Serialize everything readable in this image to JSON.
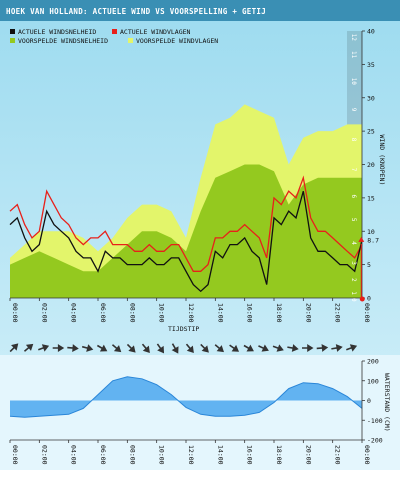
{
  "title": "HOEK VAN HOLLAND: ACTUELE WIND VS VOORSPELLING + GETIJ",
  "colors": {
    "header": "#3a8fb4",
    "sky_top": "#9fdcf0",
    "sky_bottom": "#d6f1fa",
    "actual_speed": "#111111",
    "actual_gust": "#e8201a",
    "forecast_speed": "#94c91f",
    "forecast_gust": "#e3f56b",
    "tide_fill": "#62b3f1",
    "tide_line": "#2a86d8",
    "arrow": "#333333",
    "current_marker": "#e8201a"
  },
  "chart_data": [
    {
      "type": "area",
      "xlabel": "TIJDSTIP",
      "ylabel": "WIND (KNOPEN)",
      "x_unit": "hours",
      "xlim": [
        0,
        24
      ],
      "ylim": [
        0,
        40
      ],
      "yticks": [
        0,
        5,
        10,
        15,
        20,
        25,
        30,
        35,
        40
      ],
      "xticks": [
        "00:00",
        "02:00",
        "04:00",
        "06:00",
        "08:00",
        "10:00",
        "12:00",
        "14:00",
        "16:00",
        "18:00",
        "20:00",
        "22:00",
        "00:00"
      ],
      "bft_scale": [
        "0",
        "1",
        "2",
        "3",
        "4",
        "5",
        "6",
        "7",
        "8",
        "9",
        "10",
        "11",
        "12"
      ],
      "legend": [
        "ACTUELE WINDSNELHEID",
        "ACTUELE WINDVLAGEN",
        "VOORSPELDE WINDSNELHEID",
        "VOORSPELDE WINDVLAGEN"
      ],
      "current_value": {
        "x": 23.95,
        "y": 8.7,
        "label": "8.7"
      },
      "series": [
        {
          "name": "VOORSPELDE WINDVLAGEN",
          "x": [
            0,
            1,
            2,
            3,
            4,
            5,
            6,
            7,
            8,
            9,
            10,
            11,
            12,
            13,
            14,
            15,
            16,
            17,
            18,
            19,
            20,
            21,
            22,
            23,
            24
          ],
          "values": [
            6,
            8,
            10,
            10,
            10,
            9,
            7,
            9,
            12,
            14,
            14,
            13,
            9,
            18,
            26,
            27,
            29,
            28,
            27,
            20,
            24,
            25,
            25,
            26,
            26
          ]
        },
        {
          "name": "VOORSPELDE WINDSNELHEID",
          "x": [
            0,
            1,
            2,
            3,
            4,
            5,
            6,
            7,
            8,
            9,
            10,
            11,
            12,
            13,
            14,
            15,
            16,
            17,
            18,
            19,
            20,
            21,
            22,
            23,
            24
          ],
          "values": [
            5,
            6,
            7,
            6,
            5,
            4,
            4,
            6,
            8,
            10,
            10,
            9,
            7,
            13,
            18,
            19,
            20,
            20,
            19,
            14,
            17,
            18,
            18,
            18,
            18
          ]
        },
        {
          "name": "ACTUELE WINDVLAGEN",
          "x": [
            0,
            0.5,
            1,
            1.5,
            2,
            2.5,
            3,
            3.5,
            4,
            4.5,
            5,
            5.5,
            6,
            6.5,
            7,
            7.5,
            8,
            8.5,
            9,
            9.5,
            10,
            10.5,
            11,
            11.5,
            12,
            12.5,
            13,
            13.5,
            14,
            14.5,
            15,
            15.5,
            16,
            16.5,
            17,
            17.5,
            18,
            18.5,
            19,
            19.5,
            20,
            20.5,
            21,
            21.5,
            22,
            22.5,
            23,
            23.5,
            24
          ],
          "values": [
            13,
            14,
            11,
            9,
            10,
            16,
            14,
            12,
            11,
            9,
            8,
            9,
            9,
            10,
            8,
            8,
            8,
            7,
            7,
            8,
            7,
            7,
            8,
            8,
            6,
            4,
            4,
            5,
            9,
            9,
            10,
            10,
            11,
            10,
            9,
            6,
            15,
            14,
            16,
            15,
            18,
            12,
            10,
            10,
            9,
            8,
            7,
            6,
            8
          ]
        },
        {
          "name": "ACTUELE WINDSNELHEID",
          "x": [
            0,
            0.5,
            1,
            1.5,
            2,
            2.5,
            3,
            3.5,
            4,
            4.5,
            5,
            5.5,
            6,
            6.5,
            7,
            7.5,
            8,
            8.5,
            9,
            9.5,
            10,
            10.5,
            11,
            11.5,
            12,
            12.5,
            13,
            13.5,
            14,
            14.5,
            15,
            15.5,
            16,
            16.5,
            17,
            17.5,
            18,
            18.5,
            19,
            19.5,
            20,
            20.5,
            21,
            21.5,
            22,
            22.5,
            23,
            23.5,
            24
          ],
          "values": [
            11,
            12,
            9,
            7,
            8,
            13,
            11,
            10,
            9,
            7,
            6,
            6,
            4,
            7,
            6,
            6,
            5,
            5,
            5,
            6,
            5,
            5,
            6,
            6,
            4,
            2,
            1,
            2,
            7,
            6,
            8,
            8,
            9,
            7,
            6,
            2,
            12,
            11,
            13,
            12,
            16,
            9,
            7,
            7,
            6,
            5,
            5,
            4,
            8.7
          ]
        }
      ]
    },
    {
      "type": "area",
      "ylabel": "WATERSTAND (CM)",
      "xlim": [
        0,
        24
      ],
      "ylim": [
        -200,
        200
      ],
      "yticks": [
        -200,
        -100,
        0,
        100,
        200
      ],
      "xticks": [
        "00:00",
        "02:00",
        "04:00",
        "06:00",
        "08:00",
        "10:00",
        "12:00",
        "14:00",
        "16:00",
        "18:00",
        "20:00",
        "22:00",
        "00:00"
      ],
      "series": [
        {
          "name": "WATERSTAND",
          "x": [
            0,
            1,
            2,
            3,
            4,
            5,
            6,
            7,
            8,
            9,
            10,
            11,
            12,
            13,
            14,
            15,
            16,
            17,
            18,
            19,
            20,
            21,
            22,
            23,
            24
          ],
          "values": [
            -80,
            -85,
            -80,
            -75,
            -70,
            -40,
            30,
            100,
            120,
            110,
            80,
            30,
            -35,
            -70,
            -80,
            -80,
            -75,
            -60,
            -10,
            60,
            90,
            85,
            60,
            20,
            -40
          ]
        }
      ]
    },
    {
      "type": "direction",
      "x": [
        0.25,
        1.25,
        2.25,
        3.25,
        4.25,
        5.25,
        6.25,
        7.25,
        8.25,
        9.25,
        10.25,
        11.25,
        12.25,
        13.25,
        14.25,
        15.25,
        16.25,
        17.25,
        18.25,
        19.25,
        20.25,
        21.25,
        22.25,
        23.25
      ],
      "directions": [
        225,
        230,
        250,
        270,
        275,
        285,
        300,
        310,
        315,
        320,
        325,
        330,
        320,
        315,
        310,
        305,
        300,
        295,
        290,
        280,
        270,
        265,
        260,
        250
      ]
    }
  ]
}
